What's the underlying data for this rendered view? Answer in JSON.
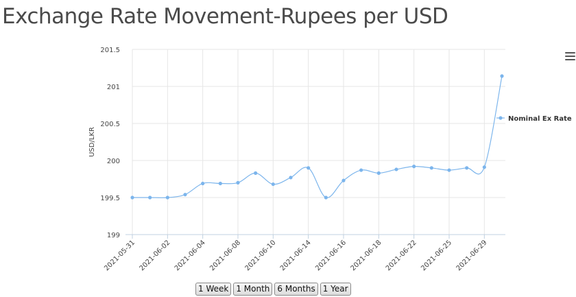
{
  "page": {
    "title": "Exchange Rate Movement-Rupees per USD"
  },
  "range_buttons": [
    "1 Week",
    "1 Month",
    "6 Months",
    "1 Year"
  ],
  "chart_data": {
    "type": "line",
    "title": "",
    "xlabel": "",
    "ylabel": "USD/LKR",
    "ylim": [
      199,
      201.5
    ],
    "y_ticks": [
      "199",
      "199.5",
      "200",
      "200.5",
      "201",
      "201.5"
    ],
    "x_tick_labels": [
      "2021-05-31",
      "2021-06-02",
      "2021-06-04",
      "2021-06-08",
      "2021-06-10",
      "2021-06-14",
      "2021-06-16",
      "2021-06-18",
      "2021-06-22",
      "2021-06-25",
      "2021-06-29"
    ],
    "grid": true,
    "legend_position": "right",
    "series": [
      {
        "name": "Nominal Ex Rate",
        "color": "#7cb5ec",
        "values": [
          199.5,
          199.5,
          199.5,
          199.54,
          199.69,
          199.69,
          199.7,
          199.83,
          199.68,
          199.77,
          199.9,
          199.5,
          199.73,
          199.87,
          199.83,
          199.88,
          199.92,
          199.9,
          199.87,
          199.9,
          199.91,
          201.14
        ]
      }
    ]
  }
}
